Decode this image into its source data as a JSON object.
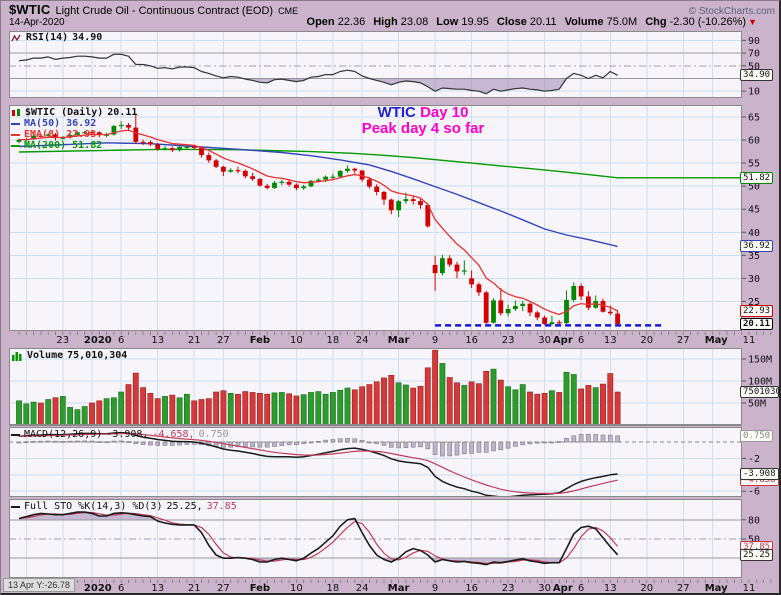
{
  "header": {
    "symbol": "$WTIC",
    "name": "Light Crude Oil - Continuous Contract (EOD)",
    "exchange": "CME",
    "date": "14-Apr-2020",
    "copyright": "© StockCharts.com",
    "quote": {
      "open_label": "Open",
      "open": "22.36",
      "high_label": "High",
      "high": "23.08",
      "low_label": "Low",
      "low": "19.95",
      "close_label": "Close",
      "close": "20.11",
      "volume_label": "Volume",
      "volume": "75.0M",
      "chg_label": "Chg",
      "chg": "-2.30 (-10.26%)",
      "chg_arrow": "▼"
    }
  },
  "annotation": {
    "line1_symbol": "WTIC",
    "line1_rest": "Day 10",
    "line2": "Peak day 4 so far"
  },
  "legends": {
    "rsi": {
      "label": "RSI(14)",
      "value": "34.90"
    },
    "price": {
      "title": "$WTIC (Daily)",
      "value": "20.11",
      "ma50": "MA(50) 36.92",
      "ema8": "EMA(8) 22.93",
      "ma200": "MA(200) 51.82"
    },
    "volume": {
      "label": "Volume",
      "value": "75,010,304"
    },
    "macd": {
      "label": "MACD(12,26,9)",
      "v1": "-3.908,",
      "v2": "-4.658,",
      "v3": "0.750"
    },
    "sto": {
      "label": "Full STO %K(14,3) %D(3)",
      "v1": "25.25,",
      "v2": "37.85"
    }
  },
  "crosshair_readout": "13 Apr Y:-26.78",
  "colors": {
    "purple_bg": "#CBB4CB",
    "plot_bg": "#F7F5FA",
    "grid": "#CBE0EF",
    "candle_up": "#008800",
    "candle_down": "#D40000",
    "vol_up": "#2E9B2E",
    "vol_down": "#D43A3A",
    "ma50": "#3344BB",
    "ema8": "#E83030",
    "ma200": "#009900",
    "macd_line": "#1A1A1A",
    "signal": "#C23B5A",
    "sto_k": "#1A1A1A",
    "sto_d": "#C23B5A",
    "support": "#1515E0",
    "shade": "rgba(140,110,165,0.45)",
    "annotation_blue": "#2222CC",
    "annotation_magenta": "#FF00CC"
  },
  "chart_data": {
    "type": "candlestick",
    "title": "$WTIC (Daily)",
    "last_close": 20.11,
    "ylim": {
      "rsi": [
        0,
        100
      ],
      "price": [
        18.6,
        67.5
      ],
      "vol_m": [
        0,
        175
      ],
      "macd": [
        -6.8,
        1.8
      ],
      "sto": [
        0,
        100
      ]
    },
    "dates": [
      "Dec 13",
      "Dec 16",
      "Dec 17",
      "Dec 18",
      "Dec 19",
      "Dec 20",
      "Dec 23",
      "Dec 24",
      "Dec 26",
      "Dec 27",
      "Dec 30",
      "Dec 31",
      "Jan 2",
      "Jan 3",
      "Jan 6",
      "Jan 7",
      "Jan 8",
      "Jan 9",
      "Jan 10",
      "Jan 13",
      "Jan 14",
      "Jan 15",
      "Jan 16",
      "Jan 17",
      "Jan 21",
      "Jan 22",
      "Jan 23",
      "Jan 24",
      "Jan 27",
      "Jan 28",
      "Jan 29",
      "Jan 30",
      "Jan 31",
      "Feb 3",
      "Feb 4",
      "Feb 5",
      "Feb 6",
      "Feb 7",
      "Feb 10",
      "Feb 11",
      "Feb 12",
      "Feb 13",
      "Feb 14",
      "Feb 18",
      "Feb 19",
      "Feb 20",
      "Feb 21",
      "Feb 24",
      "Feb 25",
      "Feb 26",
      "Feb 27",
      "Feb 28",
      "Mar 2",
      "Mar 3",
      "Mar 4",
      "Mar 5",
      "Mar 6",
      "Mar 9",
      "Mar 10",
      "Mar 11",
      "Mar 12",
      "Mar 13",
      "Mar 16",
      "Mar 17",
      "Mar 18",
      "Mar 19",
      "Mar 20",
      "Mar 23",
      "Mar 24",
      "Mar 25",
      "Mar 26",
      "Mar 27",
      "Mar 30",
      "Mar 31",
      "Apr 1",
      "Apr 2",
      "Apr 3",
      "Apr 6",
      "Apr 7",
      "Apr 8",
      "Apr 9",
      "Apr 13",
      "Apr 14"
    ],
    "ohlc": [
      [
        59.6,
        60.3,
        59.3,
        60.07
      ],
      [
        60.07,
        60.5,
        59.7,
        60.21
      ],
      [
        60.21,
        61.2,
        60.0,
        60.94
      ],
      [
        60.94,
        61.3,
        60.5,
        60.93
      ],
      [
        60.93,
        61.6,
        60.6,
        61.22
      ],
      [
        61.22,
        61.5,
        59.9,
        60.44
      ],
      [
        60.44,
        60.9,
        60.1,
        60.52
      ],
      [
        60.52,
        61.4,
        60.3,
        61.11
      ],
      [
        61.11,
        61.9,
        60.9,
        61.68
      ],
      [
        61.68,
        62.0,
        61.3,
        61.72
      ],
      [
        61.72,
        62.0,
        61.3,
        61.68
      ],
      [
        61.68,
        61.9,
        60.6,
        61.06
      ],
      [
        61.06,
        61.6,
        60.6,
        61.18
      ],
      [
        61.18,
        63.3,
        61.0,
        63.05
      ],
      [
        63.05,
        64.1,
        62.4,
        63.27
      ],
      [
        63.27,
        63.7,
        62.1,
        62.7
      ],
      [
        62.7,
        65.6,
        59.2,
        59.61
      ],
      [
        59.61,
        60.1,
        58.9,
        59.56
      ],
      [
        59.56,
        59.9,
        58.7,
        59.04
      ],
      [
        59.04,
        59.4,
        57.7,
        58.08
      ],
      [
        58.08,
        58.7,
        57.8,
        58.23
      ],
      [
        58.23,
        58.6,
        57.4,
        57.81
      ],
      [
        57.81,
        58.9,
        57.5,
        58.52
      ],
      [
        58.52,
        59.0,
        58.1,
        58.54
      ],
      [
        58.54,
        59.0,
        57.9,
        58.34
      ],
      [
        58.34,
        58.6,
        56.2,
        56.74
      ],
      [
        56.74,
        57.3,
        55.1,
        55.59
      ],
      [
        55.59,
        55.9,
        53.9,
        54.19
      ],
      [
        54.19,
        54.4,
        52.2,
        53.14
      ],
      [
        53.14,
        53.9,
        52.9,
        53.48
      ],
      [
        53.48,
        54.2,
        52.8,
        53.33
      ],
      [
        53.33,
        53.6,
        51.7,
        52.14
      ],
      [
        52.14,
        52.9,
        51.1,
        51.56
      ],
      [
        51.56,
        51.8,
        49.9,
        50.11
      ],
      [
        50.11,
        50.5,
        49.3,
        49.61
      ],
      [
        49.61,
        51.1,
        49.4,
        50.75
      ],
      [
        50.75,
        51.4,
        50.2,
        50.95
      ],
      [
        50.95,
        51.2,
        49.9,
        50.32
      ],
      [
        50.32,
        50.6,
        49.1,
        49.57
      ],
      [
        49.57,
        50.3,
        49.2,
        49.94
      ],
      [
        49.94,
        51.3,
        49.8,
        51.17
      ],
      [
        51.17,
        51.7,
        50.8,
        51.42
      ],
      [
        51.42,
        52.3,
        50.9,
        52.05
      ],
      [
        52.05,
        52.7,
        51.3,
        52.05
      ],
      [
        52.05,
        53.5,
        51.8,
        53.29
      ],
      [
        53.29,
        54.5,
        52.9,
        53.78
      ],
      [
        53.78,
        54.0,
        52.7,
        53.38
      ],
      [
        53.38,
        53.5,
        50.9,
        51.43
      ],
      [
        51.43,
        52.0,
        49.5,
        49.9
      ],
      [
        49.9,
        50.4,
        48.0,
        48.73
      ],
      [
        48.73,
        49.0,
        45.9,
        47.09
      ],
      [
        47.09,
        47.3,
        43.9,
        44.76
      ],
      [
        44.76,
        47.0,
        43.3,
        46.75
      ],
      [
        46.75,
        48.6,
        46.2,
        47.18
      ],
      [
        47.18,
        48.0,
        46.0,
        46.78
      ],
      [
        46.78,
        47.2,
        45.1,
        45.9
      ],
      [
        45.9,
        46.0,
        41.0,
        41.28
      ],
      [
        32.9,
        34.9,
        27.3,
        31.13
      ],
      [
        31.13,
        35.1,
        30.6,
        34.36
      ],
      [
        34.36,
        35.0,
        32.5,
        32.98
      ],
      [
        32.98,
        33.6,
        30.0,
        31.5
      ],
      [
        31.5,
        33.9,
        30.7,
        31.73
      ],
      [
        30.0,
        31.7,
        27.9,
        28.7
      ],
      [
        28.7,
        29.1,
        26.2,
        26.95
      ],
      [
        26.95,
        27.3,
        20.1,
        20.37
      ],
      [
        20.37,
        25.7,
        20.2,
        25.22
      ],
      [
        25.22,
        27.9,
        21.9,
        22.43
      ],
      [
        22.43,
        24.3,
        21.7,
        23.36
      ],
      [
        23.36,
        25.2,
        22.9,
        24.01
      ],
      [
        24.01,
        25.1,
        22.9,
        24.49
      ],
      [
        24.49,
        24.7,
        21.8,
        22.6
      ],
      [
        22.6,
        22.9,
        20.9,
        21.51
      ],
      [
        21.51,
        21.9,
        19.9,
        20.09
      ],
      [
        20.09,
        21.9,
        19.8,
        20.48
      ],
      [
        20.48,
        21.0,
        19.9,
        20.31
      ],
      [
        20.31,
        27.4,
        20.1,
        25.32
      ],
      [
        25.32,
        29.1,
        24.8,
        28.34
      ],
      [
        28.34,
        28.9,
        25.3,
        26.08
      ],
      [
        26.08,
        27.2,
        23.1,
        23.63
      ],
      [
        23.63,
        26.3,
        23.4,
        25.09
      ],
      [
        25.09,
        25.6,
        22.6,
        22.76
      ],
      [
        22.76,
        24.1,
        22.0,
        22.41
      ],
      [
        22.36,
        23.08,
        19.95,
        20.11
      ]
    ],
    "volumes_m": [
      55,
      48,
      52,
      50,
      58,
      62,
      65,
      40,
      35,
      42,
      50,
      55,
      60,
      62,
      75,
      92,
      118,
      85,
      72,
      60,
      65,
      68,
      62,
      70,
      55,
      58,
      60,
      75,
      78,
      72,
      70,
      76,
      74,
      72,
      70,
      73,
      74,
      71,
      66,
      69,
      74,
      76,
      70,
      74,
      79,
      84,
      80,
      87,
      92,
      98,
      107,
      113,
      96,
      91,
      84,
      88,
      130,
      170,
      140,
      108,
      96,
      90,
      98,
      94,
      122,
      127,
      102,
      87,
      80,
      92,
      75,
      70,
      72,
      78,
      74,
      120,
      115,
      82,
      90,
      85,
      93,
      117,
      75
    ],
    "rsi": [
      58,
      59,
      62,
      62,
      64,
      60,
      62,
      63,
      65,
      65,
      64,
      62,
      62,
      68,
      68,
      65,
      52,
      52,
      50,
      46,
      47,
      45,
      48,
      48,
      47,
      41,
      38,
      34,
      31,
      33,
      32,
      29,
      27,
      24,
      23,
      28,
      29,
      27,
      25,
      27,
      32,
      33,
      36,
      36,
      41,
      43,
      41,
      34,
      30,
      27,
      24,
      20,
      24,
      26,
      25,
      23,
      17,
      10,
      15,
      14,
      13,
      13,
      11,
      10,
      6,
      13,
      10,
      12,
      14,
      15,
      13,
      12,
      10,
      11,
      13,
      30,
      38,
      35,
      30,
      35,
      31,
      41,
      34.9
    ],
    "macd": [
      0.7,
      0.75,
      0.8,
      0.85,
      0.9,
      0.9,
      0.9,
      0.95,
      1.0,
      1.05,
      1.05,
      1.0,
      1.0,
      1.1,
      1.15,
      1.1,
      0.8,
      0.6,
      0.45,
      0.3,
      0.2,
      0.1,
      0.05,
      0.05,
      0.0,
      -0.15,
      -0.35,
      -0.6,
      -0.85,
      -1.0,
      -1.1,
      -1.25,
      -1.4,
      -1.6,
      -1.75,
      -1.8,
      -1.8,
      -1.8,
      -1.85,
      -1.8,
      -1.65,
      -1.5,
      -1.3,
      -1.15,
      -0.95,
      -0.8,
      -0.75,
      -0.9,
      -1.1,
      -1.35,
      -1.65,
      -2.05,
      -2.3,
      -2.45,
      -2.55,
      -2.65,
      -3.1,
      -4.2,
      -4.8,
      -5.2,
      -5.5,
      -5.7,
      -6.0,
      -6.2,
      -6.5,
      -6.6,
      -6.7,
      -6.7,
      -6.6,
      -6.5,
      -6.45,
      -6.4,
      -6.35,
      -6.3,
      -6.2,
      -5.7,
      -5.2,
      -4.8,
      -4.55,
      -4.35,
      -4.2,
      -4.0,
      -3.908
    ],
    "macd_signal_period": 9,
    "sto_k": [
      82,
      85,
      88,
      90,
      89,
      88,
      88,
      90,
      92,
      92,
      90,
      86,
      86,
      90,
      91,
      90,
      88,
      86,
      85,
      78,
      75,
      73,
      72,
      72,
      72,
      60,
      40,
      25,
      20,
      20,
      21,
      20,
      18,
      14,
      14,
      18,
      20,
      18,
      16,
      20,
      28,
      35,
      45,
      55,
      70,
      80,
      82,
      60,
      40,
      25,
      18,
      14,
      20,
      30,
      35,
      32,
      25,
      14,
      18,
      16,
      14,
      15,
      13,
      12,
      10,
      14,
      13,
      15,
      17,
      19,
      16,
      14,
      12,
      13,
      13,
      35,
      58,
      68,
      70,
      66,
      52,
      38,
      25.25
    ],
    "sto_d_period": 3,
    "ema8_period": 8,
    "ma50_points": [
      [
        0,
        58.6
      ],
      [
        6,
        59.0
      ],
      [
        12,
        59.4
      ],
      [
        18,
        59.2
      ],
      [
        24,
        58.6
      ],
      [
        30,
        58.0
      ],
      [
        36,
        57.3
      ],
      [
        40,
        56.6
      ],
      [
        44,
        55.7
      ],
      [
        48,
        54.6
      ],
      [
        51,
        53.2
      ],
      [
        54,
        51.6
      ],
      [
        57,
        49.9
      ],
      [
        60,
        48.2
      ],
      [
        63,
        46.4
      ],
      [
        66,
        44.6
      ],
      [
        69,
        42.7
      ],
      [
        72,
        40.7
      ],
      [
        75,
        39.4
      ],
      [
        78,
        38.4
      ],
      [
        80,
        37.7
      ],
      [
        82,
        36.92
      ]
    ],
    "ma200_points": [
      [
        0,
        57.4
      ],
      [
        10,
        57.7
      ],
      [
        20,
        58.0
      ],
      [
        30,
        57.9
      ],
      [
        40,
        57.5
      ],
      [
        46,
        57.1
      ],
      [
        50,
        56.7
      ],
      [
        54,
        56.2
      ],
      [
        58,
        55.6
      ],
      [
        62,
        55.0
      ],
      [
        66,
        54.4
      ],
      [
        70,
        53.8
      ],
      [
        74,
        53.2
      ],
      [
        78,
        52.5
      ],
      [
        82,
        51.82
      ],
      [
        99,
        51.82
      ]
    ],
    "support_line": {
      "from_day": 57,
      "to_day": 88,
      "value": 19.8
    },
    "grid_week_days": [
      1,
      6,
      10,
      14,
      19,
      24,
      28,
      33,
      38,
      43,
      47,
      52,
      57,
      62,
      67,
      72,
      77,
      81,
      86,
      91,
      95,
      100
    ],
    "xaxis": {
      "labels": [
        {
          "d": 6,
          "t": "23"
        },
        {
          "d": 10.8,
          "t": "2020",
          "b": true
        },
        {
          "d": 14,
          "t": "6"
        },
        {
          "d": 19,
          "t": "13"
        },
        {
          "d": 24,
          "t": "21"
        },
        {
          "d": 28,
          "t": "27"
        },
        {
          "d": 33,
          "t": "Feb",
          "b": true
        },
        {
          "d": 38,
          "t": "10"
        },
        {
          "d": 43,
          "t": "18"
        },
        {
          "d": 47,
          "t": "24"
        },
        {
          "d": 52,
          "t": "Mar",
          "b": true
        },
        {
          "d": 57,
          "t": "9"
        },
        {
          "d": 62,
          "t": "16"
        },
        {
          "d": 67,
          "t": "23"
        },
        {
          "d": 72,
          "t": "30"
        },
        {
          "d": 74.5,
          "t": "Apr",
          "b": true
        },
        {
          "d": 77,
          "t": "6"
        },
        {
          "d": 81,
          "t": "13"
        },
        {
          "d": 86,
          "t": "20"
        },
        {
          "d": 91,
          "t": "27"
        },
        {
          "d": 95.5,
          "t": "May",
          "b": true
        },
        {
          "d": 100,
          "t": "11"
        }
      ]
    },
    "yaxis": {
      "rsi": [
        {
          "v": 90,
          "t": "90"
        },
        {
          "v": 70,
          "t": "70"
        },
        {
          "v": 50,
          "t": "50"
        },
        {
          "v": 10,
          "t": "10"
        }
      ],
      "price": [
        {
          "v": 65,
          "t": "65"
        },
        {
          "v": 60,
          "t": "60"
        },
        {
          "v": 55,
          "t": "55"
        },
        {
          "v": 50,
          "t": "50"
        },
        {
          "v": 45,
          "t": "45"
        },
        {
          "v": 40,
          "t": "40"
        },
        {
          "v": 35,
          "t": "35"
        },
        {
          "v": 30,
          "t": "30"
        },
        {
          "v": 25,
          "t": "25"
        }
      ],
      "vol": [
        {
          "v": 150,
          "t": "150M"
        },
        {
          "v": 100,
          "t": "100M"
        },
        {
          "v": 50,
          "t": "50M"
        }
      ],
      "macd": [
        {
          "v": -2,
          "t": "-2"
        },
        {
          "v": -6,
          "t": "-6"
        }
      ],
      "sto": [
        {
          "v": 80,
          "t": "80"
        },
        {
          "v": 50,
          "t": "50"
        }
      ]
    },
    "axis_tags": [
      {
        "panel": "rsi",
        "v": 34.9,
        "t": "34.90",
        "c": "#333333"
      },
      {
        "panel": "price",
        "v": 51.82,
        "t": "51.82",
        "c": "#008800"
      },
      {
        "panel": "price",
        "v": 36.92,
        "t": "36.92",
        "c": "#3344BB"
      },
      {
        "panel": "price",
        "v": 22.93,
        "t": "22.93",
        "c": "#D40000"
      },
      {
        "panel": "price",
        "v": 20.11,
        "t": "20.11",
        "c": "#000000",
        "bold": true
      },
      {
        "panel": "vol",
        "v": 75.01,
        "t": "75010304",
        "c": "#333333",
        "clip": true
      },
      {
        "panel": "macd",
        "v": 0.75,
        "t": "0.750",
        "c": "#999999",
        "tc": "#888888"
      },
      {
        "panel": "macd",
        "v": -4.658,
        "t": "-4.658",
        "c": "#CC3344",
        "tc": "#CC3344"
      },
      {
        "panel": "macd",
        "v": -3.908,
        "t": "-3.908",
        "c": "#333333"
      },
      {
        "panel": "sto",
        "v": 37.85,
        "t": "37.85",
        "c": "#CC3344",
        "tc": "#CC3344"
      },
      {
        "panel": "sto",
        "v": 25.25,
        "t": "25.25",
        "c": "#333333"
      }
    ]
  }
}
